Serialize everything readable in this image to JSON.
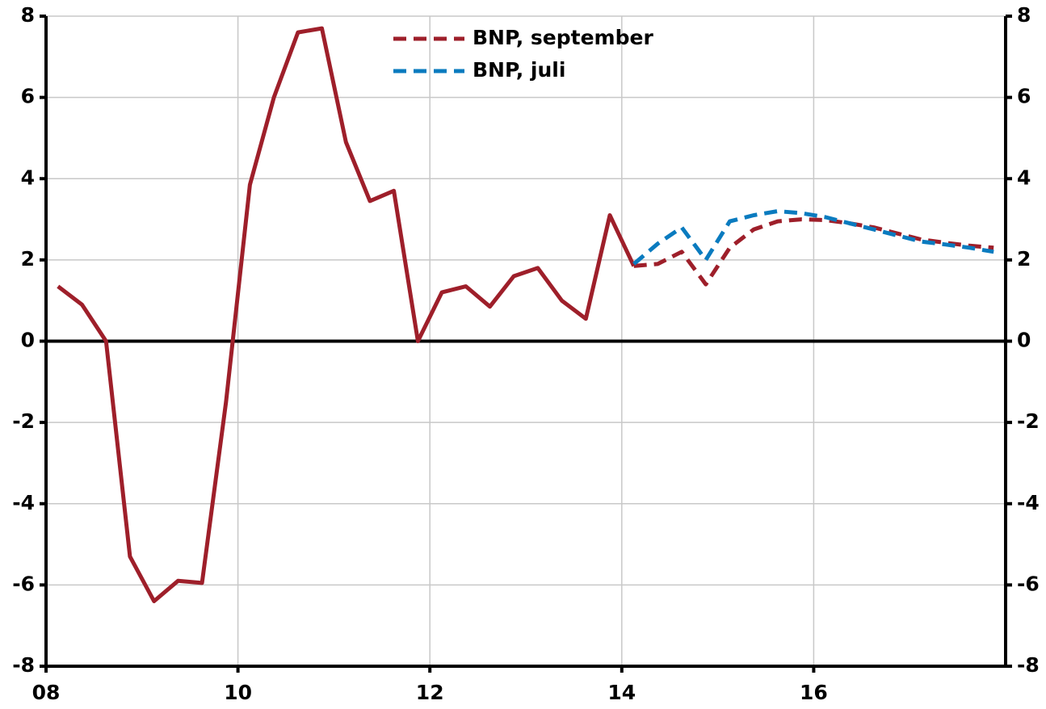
{
  "chart_data": {
    "type": "line",
    "x": [
      8.125,
      8.375,
      8.625,
      8.875,
      9.125,
      9.375,
      9.625,
      9.875,
      10.125,
      10.375,
      10.625,
      10.875,
      11.125,
      11.375,
      11.625,
      11.875,
      12.125,
      12.375,
      12.625,
      12.875,
      13.125,
      13.375,
      13.625,
      13.875,
      14.125,
      14.375,
      14.625,
      14.875,
      15.125,
      15.375,
      15.625,
      15.875,
      16.125,
      16.375,
      16.625,
      16.875,
      17.125,
      17.375,
      17.625,
      17.875
    ],
    "series": [
      {
        "color": "#9e1f2a",
        "style": "solid",
        "values": [
          1.35,
          0.9,
          0,
          -5.3,
          -6.4,
          -5.9,
          -5.95,
          -1.5,
          3.85,
          6.0,
          7.6,
          7.7,
          4.9,
          3.45,
          3.7,
          0,
          1.2,
          1.35,
          0.85,
          1.6,
          1.8,
          1.0,
          0.55,
          3.1,
          1.85,
          null,
          null,
          null,
          null,
          null,
          null,
          null,
          null,
          null,
          null,
          null,
          null,
          null,
          null,
          null
        ]
      },
      {
        "name": "BNP, september",
        "color": "#9e1f2a",
        "style": "dashed",
        "values": [
          null,
          null,
          null,
          null,
          null,
          null,
          null,
          null,
          null,
          null,
          null,
          null,
          null,
          null,
          null,
          null,
          null,
          null,
          null,
          null,
          null,
          null,
          null,
          null,
          1.85,
          1.9,
          2.2,
          1.4,
          2.3,
          2.75,
          2.95,
          3.0,
          2.98,
          2.9,
          2.8,
          2.65,
          2.5,
          2.42,
          2.35,
          2.3
        ]
      },
      {
        "name": "BNP, juli",
        "color": "#0a7bbf",
        "style": "dashed",
        "values": [
          null,
          null,
          null,
          null,
          null,
          null,
          null,
          null,
          null,
          null,
          null,
          null,
          null,
          null,
          null,
          null,
          null,
          null,
          null,
          null,
          null,
          null,
          null,
          null,
          1.9,
          2.4,
          2.8,
          2.0,
          2.95,
          3.1,
          3.2,
          3.15,
          3.05,
          2.9,
          2.75,
          2.6,
          2.45,
          2.38,
          2.3,
          2.2
        ]
      }
    ],
    "xlim": [
      8,
      18
    ],
    "xticks": [
      {
        "value": 8,
        "label": "08"
      },
      {
        "value": 10,
        "label": "10"
      },
      {
        "value": 12,
        "label": "12"
      },
      {
        "value": 14,
        "label": "14"
      },
      {
        "value": 16,
        "label": "16"
      }
    ],
    "ylim": [
      -8,
      8
    ],
    "yticks": [
      -8,
      -6,
      -4,
      -2,
      0,
      2,
      4,
      6,
      8
    ],
    "grid": true,
    "right_axis": true,
    "legend": "top"
  }
}
